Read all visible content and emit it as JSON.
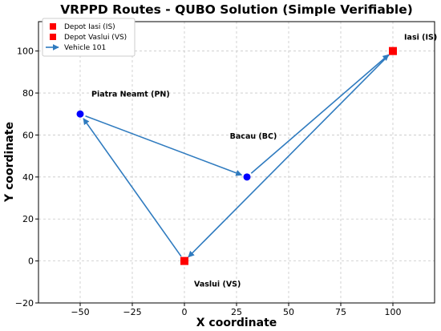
{
  "chart_data": {
    "type": "scatter",
    "title": "VRPPD Routes - QUBO Solution (Simple Verifiable)",
    "xlabel": "X coordinate",
    "ylabel": "Y coordinate",
    "xlim": [
      -70,
      120
    ],
    "ylim": [
      -20,
      114
    ],
    "xticks": [
      -50,
      -25,
      0,
      25,
      50,
      75,
      100
    ],
    "xtick_labels": [
      "−50",
      "−25",
      "0",
      "25",
      "50",
      "75",
      "100"
    ],
    "yticks": [
      -20,
      0,
      20,
      40,
      60,
      80,
      100
    ],
    "ytick_labels": [
      "−20",
      "0",
      "20",
      "40",
      "60",
      "80",
      "100"
    ],
    "grid": true,
    "legend_position": "top-left",
    "legend": [
      {
        "label": "Depot Iasi (IS)",
        "marker": "square",
        "color": "#ff0000"
      },
      {
        "label": "Depot Vaslui (VS)",
        "marker": "square",
        "color": "#ff0000"
      },
      {
        "label": "Vehicle 101",
        "marker": "arrow",
        "color": "#2f7bbf"
      }
    ],
    "points": [
      {
        "name": "Iasi (IS)",
        "x": 100,
        "y": 100,
        "marker": "square",
        "color": "#ff0000"
      },
      {
        "name": "Vaslui (VS)",
        "x": 0,
        "y": 0,
        "marker": "square",
        "color": "#ff0000"
      },
      {
        "name": "Piatra Neamt (PN)",
        "x": -50,
        "y": 70,
        "marker": "circle",
        "color": "#0000ff"
      },
      {
        "name": "Bacau (BC)",
        "x": 30,
        "y": 40,
        "marker": "circle",
        "color": "#0000ff"
      }
    ],
    "routes": [
      {
        "name": "Vehicle 101",
        "color": "#2f7bbf",
        "segments": [
          {
            "from": [
              100,
              100
            ],
            "to": [
              0,
              0
            ]
          },
          {
            "from": [
              0,
              0
            ],
            "to": [
              -50,
              70
            ]
          },
          {
            "from": [
              -50,
              70
            ],
            "to": [
              30,
              40
            ]
          },
          {
            "from": [
              30,
              40
            ],
            "to": [
              100,
              100
            ]
          }
        ]
      }
    ]
  }
}
